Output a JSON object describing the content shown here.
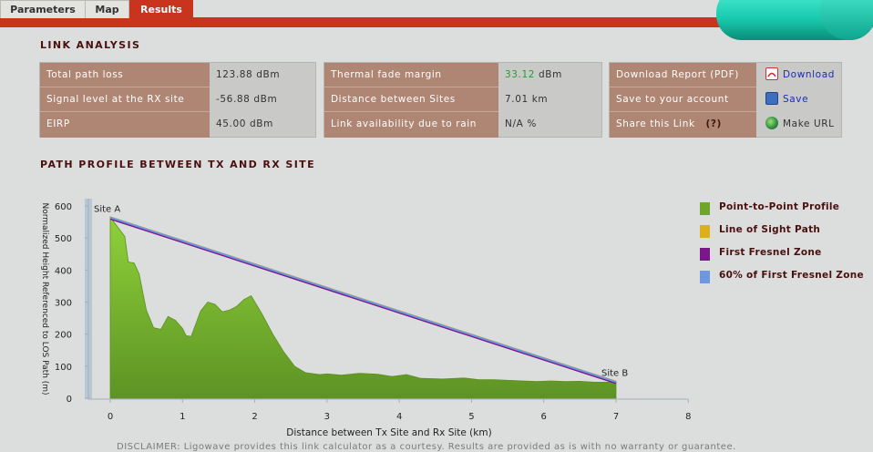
{
  "tabs": [
    {
      "label": "Parameters"
    },
    {
      "label": "Map"
    },
    {
      "label": "Results"
    }
  ],
  "link_analysis": {
    "title": "LINK ANALYSIS",
    "panel1": [
      {
        "label": "Total path loss",
        "value": "123.88 dBm"
      },
      {
        "label": "Signal level at the RX site",
        "value": "-56.88 dBm"
      },
      {
        "label": "EIRP",
        "value": "45.00 dBm"
      }
    ],
    "panel2": [
      {
        "label": "Thermal fade margin",
        "value_num": "33.12",
        "value_unit": " dBm"
      },
      {
        "label": "Distance between Sites",
        "value": "7.01 km"
      },
      {
        "label": "Link availability due to rain",
        "value": "N/A %"
      }
    ],
    "panel3": [
      {
        "label": "Download Report (PDF)",
        "action": "Download",
        "icon": "pdf-icon"
      },
      {
        "label": "Save to your account",
        "action": "Save",
        "icon": "save-icon"
      },
      {
        "label": "Share this Link",
        "help": "(?)",
        "action": "Make URL",
        "icon": "globe-icon"
      }
    ],
    "colors": {
      "label_bg": "#ae8673",
      "value_green": "#2e9a2e",
      "link": "#1a2db4"
    }
  },
  "profile_title": "PATH PROFILE BETWEEN TX AND RX SITE",
  "disclaimer": "DISCLAIMER: Ligowave provides this link calculator as a courtesy.  Results are provided as is with no warranty or guarantee.",
  "chart_data": {
    "type": "area",
    "xlabel": "Distance between Tx Site and Rx Site (km)",
    "ylabel": "Normalized Height Referenced to LOS Path (m)",
    "xlim": [
      -0.3,
      8
    ],
    "ylim": [
      0,
      620
    ],
    "xticks": [
      0,
      1,
      2,
      3,
      4,
      5,
      6,
      7,
      8
    ],
    "yticks": [
      0,
      100,
      200,
      300,
      400,
      500,
      600
    ],
    "legend_position": "right",
    "annotations": [
      {
        "text": "Site A",
        "x": 0,
        "y": 565
      },
      {
        "text": "Site B",
        "x": 7,
        "y": 52
      }
    ],
    "series": [
      {
        "name": "Point-to-Point Profile",
        "color": "#6ea62a",
        "x": [
          0,
          0.1,
          0.2,
          0.25,
          0.33,
          0.4,
          0.5,
          0.6,
          0.7,
          0.8,
          0.9,
          1.0,
          1.05,
          1.12,
          1.25,
          1.35,
          1.45,
          1.55,
          1.65,
          1.75,
          1.85,
          1.95,
          2.1,
          2.25,
          2.4,
          2.55,
          2.7,
          2.9,
          3.0,
          3.2,
          3.45,
          3.7,
          3.9,
          4.1,
          4.3,
          4.6,
          4.9,
          5.1,
          5.3,
          5.6,
          5.9,
          6.1,
          6.3,
          6.5,
          6.7,
          6.9,
          7.0
        ],
        "y": [
          565,
          535,
          505,
          425,
          422,
          388,
          275,
          220,
          215,
          255,
          243,
          218,
          195,
          193,
          272,
          300,
          293,
          270,
          275,
          287,
          308,
          320,
          263,
          200,
          145,
          100,
          80,
          74,
          76,
          72,
          78,
          75,
          68,
          74,
          62,
          60,
          63,
          58,
          58,
          55,
          52,
          54,
          52,
          53,
          50,
          50,
          52
        ]
      },
      {
        "name": "Line of Sight Path",
        "color": "#dcb01a",
        "x": [
          0,
          7
        ],
        "y": [
          565,
          52
        ]
      },
      {
        "name": "First Fresnel Zone",
        "color": "#7a1789",
        "x": [
          0,
          7
        ],
        "y": [
          560,
          47
        ]
      },
      {
        "name": "60% of First Fresnel Zone",
        "color": "#6d97df",
        "x": [
          0,
          7
        ],
        "y": [
          564,
          51
        ]
      }
    ]
  }
}
